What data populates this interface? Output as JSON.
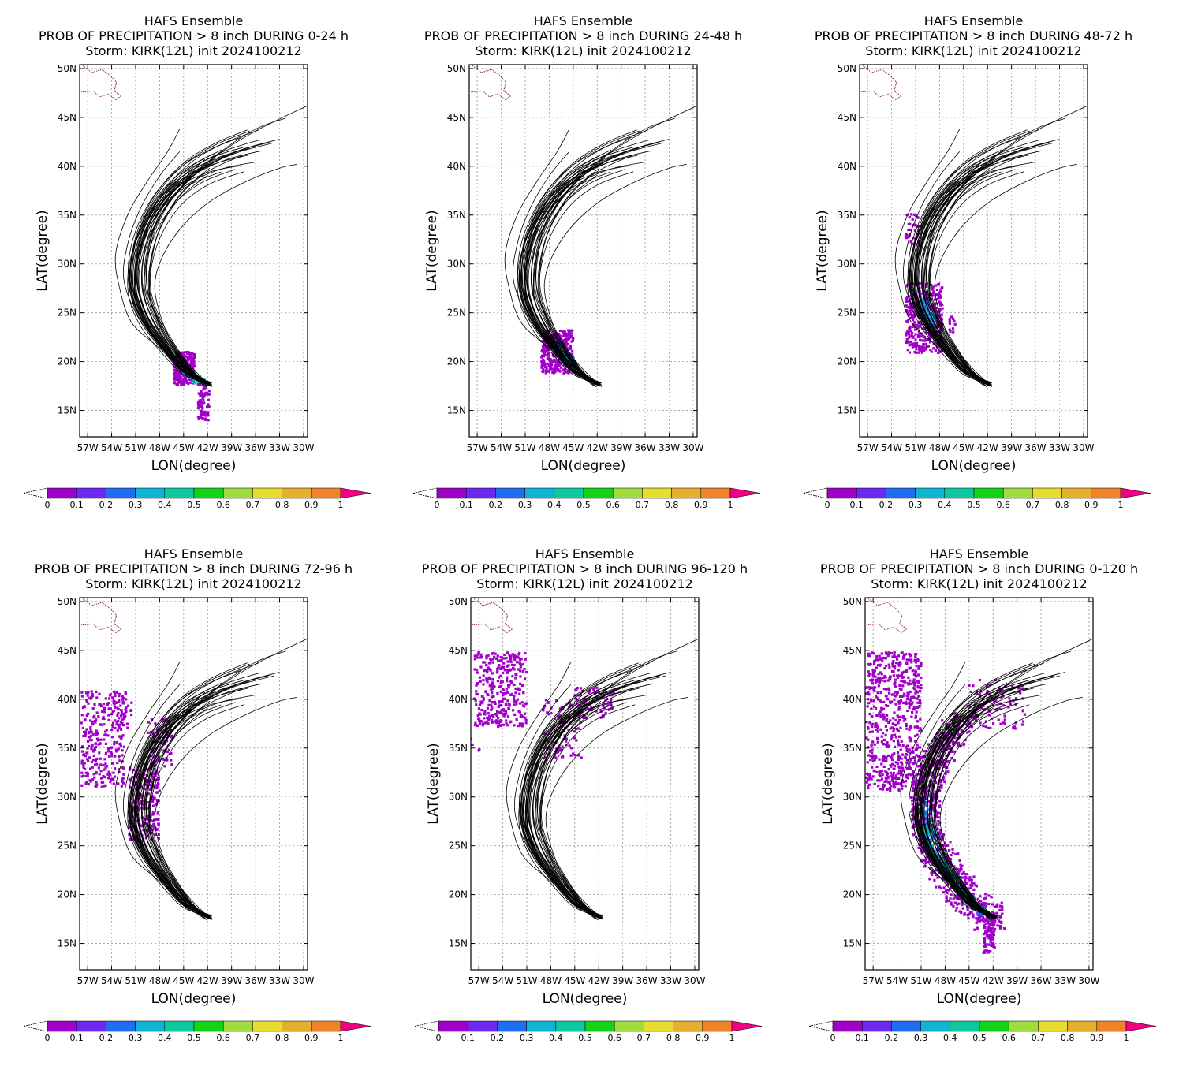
{
  "common": {
    "ensemble": "HAFS Ensemble",
    "storm": "Storm: KIRK(12L) init 2024100212",
    "xlabel": "LON(degree)",
    "ylabel": "LAT(degree)",
    "lat_ticks": [
      "50N",
      "45N",
      "40N",
      "35N",
      "30N",
      "25N",
      "20N",
      "15N"
    ],
    "lon_ticks": [
      "57W",
      "54W",
      "51W",
      "48W",
      "45W",
      "42W",
      "39W",
      "36W",
      "33W",
      "30W"
    ],
    "colorbar_labels": [
      "0",
      "0.1",
      "0.2",
      "0.3",
      "0.4",
      "0.5",
      "0.6",
      "0.7",
      "0.8",
      "0.9",
      "1"
    ],
    "colorbar_colors": [
      "#a000c8",
      "#6e28f0",
      "#1e6ef0",
      "#10b4d2",
      "#10c8a0",
      "#14d214",
      "#a0dc3c",
      "#e6dc32",
      "#e6af2d",
      "#f08228",
      "#fa3c3c",
      "#f00082"
    ],
    "track_color": "#000000",
    "coast_color": "#8c2f2f"
  },
  "panels": [
    {
      "period": "PROB OF PRECIPITATION > 8 inch DURING  0-24 h",
      "stage": 1
    },
    {
      "period": "PROB OF PRECIPITATION > 8 inch DURING 24-48 h",
      "stage": 2
    },
    {
      "period": "PROB OF PRECIPITATION > 8 inch DURING 48-72 h",
      "stage": 3
    },
    {
      "period": "PROB OF PRECIPITATION > 8 inch DURING 72-96 h",
      "stage": 4
    },
    {
      "period": "PROB OF PRECIPITATION > 8 inch DURING 96-120 h",
      "stage": 5
    },
    {
      "period": "PROB OF PRECIPITATION > 8 inch DURING 0-120 h",
      "stage": 6
    }
  ]
}
